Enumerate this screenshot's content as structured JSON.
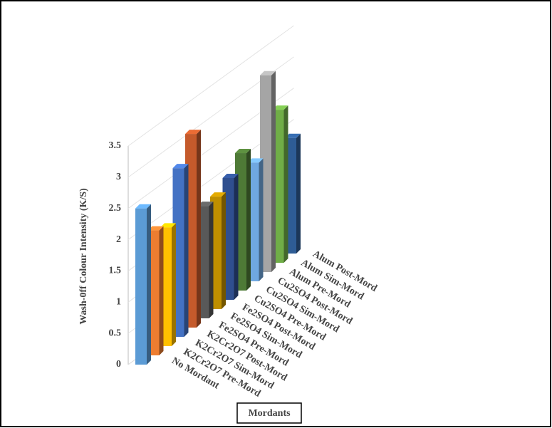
{
  "chart_data": {
    "type": "bar3d",
    "y_label": "Wash-0ff  Colour Intensity  (K/S)",
    "x_label": "Mordants",
    "categories": [
      "No Mordant",
      "K2Cr2O7 Pre-Mord",
      "K2Cr2O7 Sim-Mord",
      "K2Cr2O7 Post-Mord",
      "Fe2SO4 Pre-Mord",
      "Fe2SO4 Sim-Mord",
      "Fe2SO4 Post-Mord",
      "Cu2SO4 Pre-Mord",
      "Cu2SO4 Sim-Mord",
      "Cu2SO4 Post-Mord",
      "Alum Pre-Mord",
      "Alum Sim-Mord",
      "Alum Post-Mord"
    ],
    "values": [
      2.5,
      2.0,
      1.9,
      2.7,
      3.1,
      1.8,
      1.8,
      1.95,
      2.2,
      1.9,
      3.15,
      2.45,
      1.85
    ],
    "colors": [
      "#5b9bd5",
      "#ed7d31",
      "#ffc000",
      "#4472c4",
      "#c55a2b",
      "#595959",
      "#bf8f00",
      "#2f4f8f",
      "#4e7a36",
      "#6fa8e0",
      "#a5a5a5",
      "#70ad47",
      "#2e5c95"
    ],
    "ylim": [
      0,
      3.5
    ],
    "yticks": [
      0,
      0.5,
      1,
      1.5,
      2,
      2.5,
      3,
      3.5
    ],
    "grid": true
  }
}
